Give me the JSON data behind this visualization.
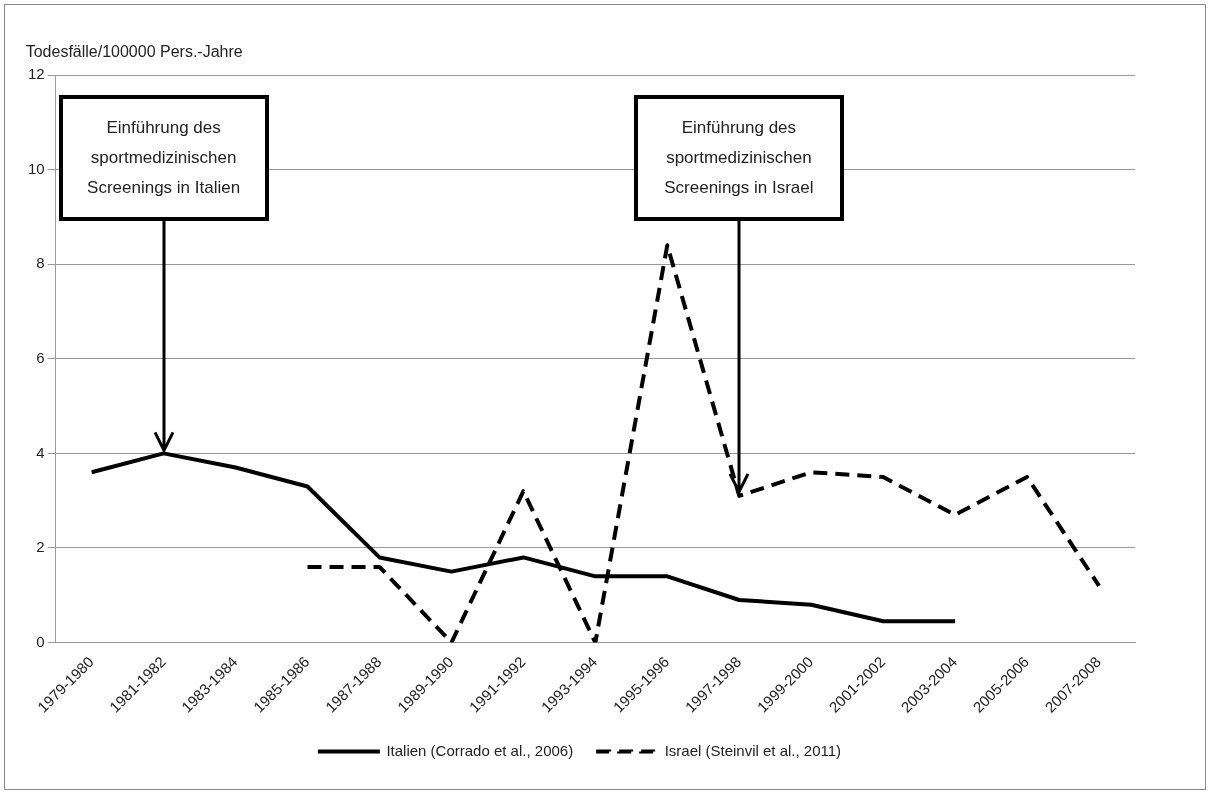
{
  "chart_data": {
    "type": "line",
    "ylabel": "Todesfälle/100000 Pers.-Jahre",
    "categories": [
      "1979-1980",
      "1981-1982",
      "1983-1984",
      "1985-1986",
      "1987-1988",
      "1989-1990",
      "1991-1992",
      "1993-1994",
      "1995-1996",
      "1997-1998",
      "1999-2000",
      "2001-2002",
      "2003-2004",
      "2005-2006",
      "2007-2008"
    ],
    "series": [
      {
        "name": "Italien (Corrado et al., 2006)",
        "color": "#000000",
        "line_style": "solid",
        "values": [
          3.6,
          4.0,
          3.7,
          3.3,
          1.8,
          1.5,
          1.8,
          1.4,
          1.4,
          0.9,
          0.8,
          0.45,
          0.45,
          null,
          null
        ]
      },
      {
        "name": "Israel (Steinvil et al., 2011)",
        "color": "#000000",
        "line_style": "dashed",
        "values": [
          null,
          null,
          null,
          1.6,
          1.6,
          0,
          3.2,
          0,
          8.4,
          3.1,
          3.6,
          3.5,
          2.7,
          3.5,
          1.2
        ]
      }
    ],
    "ylim": [
      0,
      12
    ],
    "yticks": [
      0,
      2,
      4,
      6,
      8,
      10,
      12
    ],
    "grid": "y",
    "legend": "bottom",
    "marker": "none",
    "annotations": [
      "Einführung des sportmedizinischen Screenings in Italien",
      "Einführung des sportmedizinischen Screenings in Israel"
    ]
  }
}
